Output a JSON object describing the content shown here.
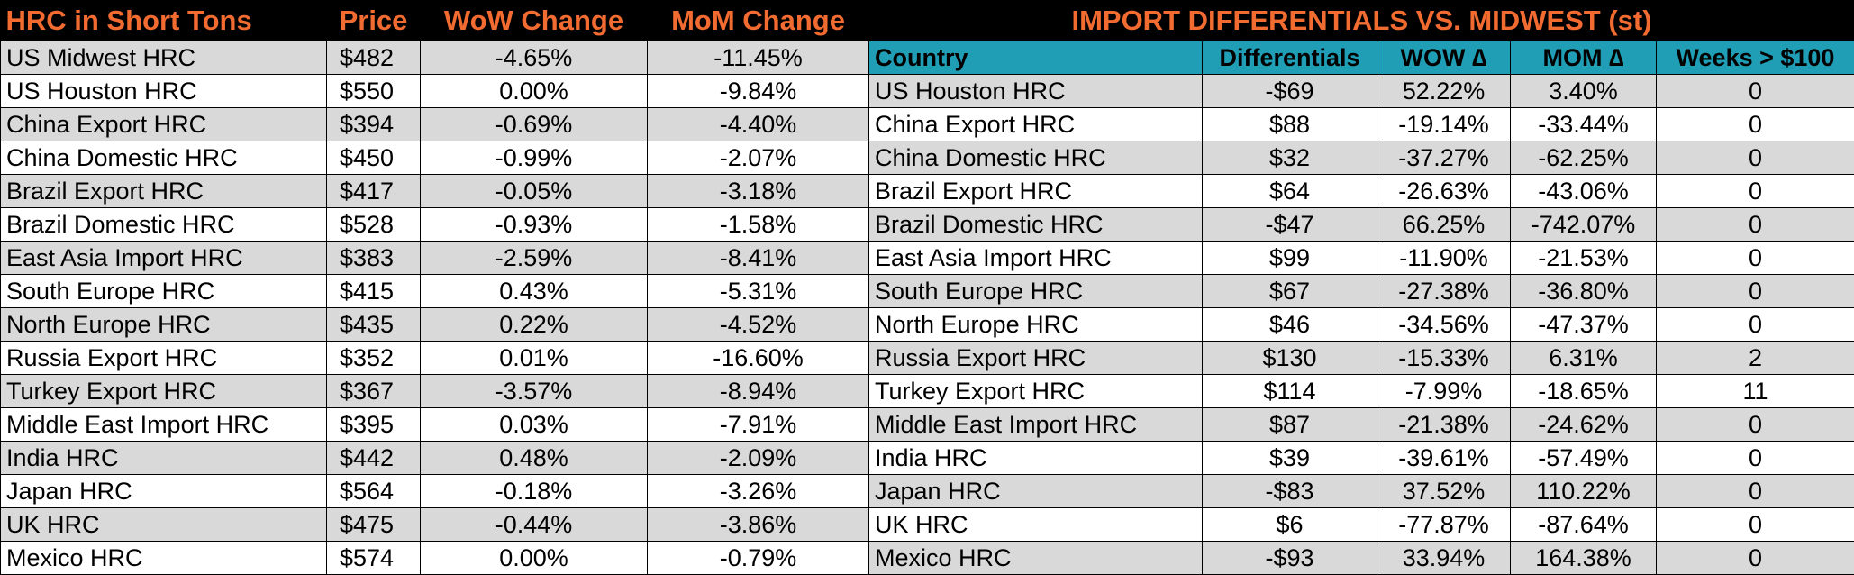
{
  "left": {
    "headers": [
      "HRC in Short Tons",
      "Price",
      "WoW Change",
      "MoM Change"
    ],
    "rows": [
      [
        "US Midwest HRC",
        "$482",
        "-4.65%",
        "-11.45%"
      ],
      [
        "US Houston HRC",
        "$550",
        "0.00%",
        "-9.84%"
      ],
      [
        "China Export HRC",
        "$394",
        "-0.69%",
        "-4.40%"
      ],
      [
        "China Domestic HRC",
        "$450",
        "-0.99%",
        "-2.07%"
      ],
      [
        "Brazil Export HRC",
        "$417",
        "-0.05%",
        "-3.18%"
      ],
      [
        "Brazil Domestic HRC",
        "$528",
        "-0.93%",
        "-1.58%"
      ],
      [
        "East Asia Import HRC",
        "$383",
        "-2.59%",
        "-8.41%"
      ],
      [
        "South Europe HRC",
        "$415",
        "0.43%",
        "-5.31%"
      ],
      [
        "North Europe HRC",
        "$435",
        "0.22%",
        "-4.52%"
      ],
      [
        "Russia Export HRC",
        "$352",
        "0.01%",
        "-16.60%"
      ],
      [
        "Turkey Export HRC",
        "$367",
        "-3.57%",
        "-8.94%"
      ],
      [
        "Middle East Import HRC",
        "$395",
        "0.03%",
        "-7.91%"
      ],
      [
        "India HRC",
        "$442",
        "0.48%",
        "-2.09%"
      ],
      [
        "Japan HRC",
        "$564",
        "-0.18%",
        "-3.26%"
      ],
      [
        "UK HRC",
        "$475",
        "-0.44%",
        "-3.86%"
      ],
      [
        "Mexico HRC",
        "$574",
        "0.00%",
        "-0.79%"
      ]
    ]
  },
  "right": {
    "title": "IMPORT DIFFERENTIALS VS. MIDWEST (st)",
    "headers": [
      "Country",
      "Differentials",
      "WOW ∆",
      "MOM ∆",
      "Weeks > $100"
    ],
    "rows": [
      [
        "US Houston HRC",
        "-$69",
        "52.22%",
        "3.40%",
        "0"
      ],
      [
        "China Export HRC",
        "$88",
        "-19.14%",
        "-33.44%",
        "0"
      ],
      [
        "China Domestic HRC",
        "$32",
        "-37.27%",
        "-62.25%",
        "0"
      ],
      [
        "Brazil Export HRC",
        "$64",
        "-26.63%",
        "-43.06%",
        "0"
      ],
      [
        "Brazil Domestic HRC",
        "-$47",
        "66.25%",
        "-742.07%",
        "0"
      ],
      [
        "East Asia Import HRC",
        "$99",
        "-11.90%",
        "-21.53%",
        "0"
      ],
      [
        "South Europe HRC",
        "$67",
        "-27.38%",
        "-36.80%",
        "0"
      ],
      [
        "North Europe HRC",
        "$46",
        "-34.56%",
        "-47.37%",
        "0"
      ],
      [
        "Russia Export HRC",
        "$130",
        "-15.33%",
        "6.31%",
        "2"
      ],
      [
        "Turkey Export HRC",
        "$114",
        "-7.99%",
        "-18.65%",
        "11"
      ],
      [
        "Middle East Import HRC",
        "$87",
        "-21.38%",
        "-24.62%",
        "0"
      ],
      [
        "India HRC",
        "$39",
        "-39.61%",
        "-57.49%",
        "0"
      ],
      [
        "Japan HRC",
        "-$83",
        "37.52%",
        "110.22%",
        "0"
      ],
      [
        "UK HRC",
        "$6",
        "-77.87%",
        "-87.64%",
        "0"
      ],
      [
        "Mexico HRC",
        "-$93",
        "33.94%",
        "164.38%",
        "0"
      ]
    ]
  },
  "colors": {
    "title_text": "#f26b30",
    "header_bg": "#1f9eb5",
    "row_grey": "#d9d9d9",
    "row_white": "#ffffff",
    "background": "#000000"
  }
}
